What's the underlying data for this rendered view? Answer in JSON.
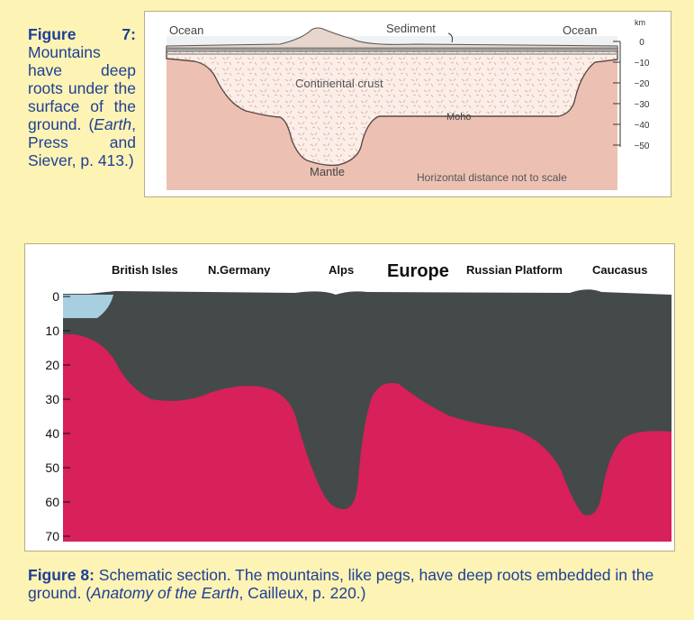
{
  "figure7": {
    "caption_label": "Figure 7:",
    "caption_text_1": "Mountains have deep roots under the surface of the ground. (",
    "caption_source_italic": "Earth",
    "caption_text_2": ", Press and Siever, p. 413.)",
    "labels": {
      "ocean_left": "Ocean",
      "ocean_right": "Ocean",
      "sediment": "Sediment",
      "continental_crust": "Continental crust",
      "moho": "Moho",
      "mantle": "Mantle",
      "scale_note": "Horizontal distance not to scale"
    },
    "axis": {
      "unit": "km",
      "ticks": [
        "0",
        "−10",
        "−20",
        "−30",
        "−40",
        "−50"
      ]
    },
    "colors": {
      "mantle": "#ecc1b3",
      "crust": "#fbeee8",
      "sediment": "#9a9a9a",
      "ocean": "#dfe6ec"
    }
  },
  "figure8": {
    "title": "Europe",
    "regions": [
      "British Isles",
      "N.Germany",
      "Alps",
      "Russian Platform",
      "Caucasus"
    ],
    "depth_ticks": [
      "0",
      "10",
      "20",
      "30",
      "40",
      "50",
      "60",
      "70"
    ],
    "caption_label": "Figure 8:",
    "caption_text_1": " Schematic section.  The mountains, like pegs, have deep roots embedded in the ground. (",
    "caption_source_italic": "Anatomy of the Earth",
    "caption_text_2": ", Cailleux, p. 220.)",
    "colors": {
      "crust": "#444a4a",
      "mantle": "#d8205a",
      "sea": "#a8cfe0"
    }
  }
}
